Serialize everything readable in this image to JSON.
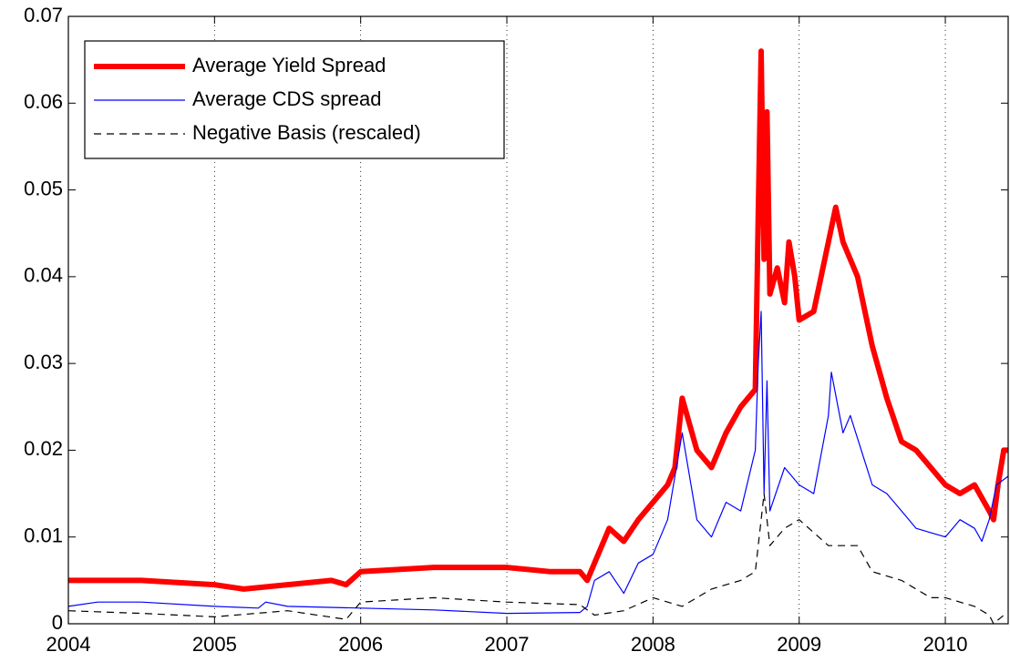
{
  "chart_data": {
    "type": "line",
    "xlim": [
      2004,
      2010.43
    ],
    "ylim": [
      0,
      0.07
    ],
    "xticks": [
      2004,
      2005,
      2006,
      2007,
      2008,
      2009,
      2010
    ],
    "yticks": [
      0,
      0.01,
      0.02,
      0.03,
      0.04,
      0.05,
      0.06,
      0.07
    ],
    "grid": "x",
    "legend": "upper left",
    "series": [
      {
        "name": "Average Yield Spread",
        "color": "#ff0000",
        "width": 6,
        "dash": "solid",
        "x": [
          2004,
          2004.5,
          2005,
          2005.2,
          2005.5,
          2005.8,
          2005.9,
          2006,
          2006.5,
          2007,
          2007.3,
          2007.5,
          2007.55,
          2007.6,
          2007.7,
          2007.8,
          2007.9,
          2008,
          2008.1,
          2008.15,
          2008.2,
          2008.3,
          2008.4,
          2008.5,
          2008.6,
          2008.7,
          2008.72,
          2008.74,
          2008.76,
          2008.78,
          2008.8,
          2008.85,
          2008.9,
          2008.93,
          2008.97,
          2009,
          2009.1,
          2009.2,
          2009.25,
          2009.3,
          2009.4,
          2009.5,
          2009.6,
          2009.7,
          2009.8,
          2010,
          2010.1,
          2010.2,
          2010.3,
          2010.33,
          2010.36,
          2010.4,
          2010.43
        ],
        "values": [
          0.005,
          0.005,
          0.0045,
          0.004,
          0.0045,
          0.005,
          0.0045,
          0.006,
          0.0065,
          0.0065,
          0.006,
          0.006,
          0.005,
          0.007,
          0.011,
          0.0095,
          0.012,
          0.014,
          0.016,
          0.018,
          0.026,
          0.02,
          0.018,
          0.022,
          0.025,
          0.027,
          0.047,
          0.066,
          0.042,
          0.059,
          0.038,
          0.041,
          0.037,
          0.044,
          0.04,
          0.035,
          0.036,
          0.044,
          0.048,
          0.044,
          0.04,
          0.032,
          0.026,
          0.021,
          0.02,
          0.016,
          0.015,
          0.016,
          0.013,
          0.012,
          0.016,
          0.02,
          0.02
        ]
      },
      {
        "name": "Average CDS spread",
        "color": "#0000ff",
        "width": 1.2,
        "dash": "solid",
        "x": [
          2004,
          2004.2,
          2004.5,
          2005,
          2005.3,
          2005.35,
          2005.5,
          2006,
          2006.5,
          2007,
          2007.5,
          2007.55,
          2007.6,
          2007.7,
          2007.8,
          2007.9,
          2008,
          2008.1,
          2008.2,
          2008.3,
          2008.4,
          2008.5,
          2008.6,
          2008.7,
          2008.72,
          2008.74,
          2008.76,
          2008.78,
          2008.8,
          2008.9,
          2009,
          2009.1,
          2009.2,
          2009.22,
          2009.3,
          2009.35,
          2009.5,
          2009.6,
          2009.7,
          2009.8,
          2010,
          2010.1,
          2010.2,
          2010.25,
          2010.3,
          2010.35,
          2010.43
        ],
        "values": [
          0.002,
          0.0025,
          0.0025,
          0.002,
          0.0018,
          0.0025,
          0.002,
          0.0018,
          0.0016,
          0.0012,
          0.0013,
          0.002,
          0.005,
          0.006,
          0.0035,
          0.007,
          0.008,
          0.012,
          0.022,
          0.012,
          0.01,
          0.014,
          0.013,
          0.02,
          0.03,
          0.036,
          0.015,
          0.028,
          0.013,
          0.018,
          0.016,
          0.015,
          0.024,
          0.029,
          0.022,
          0.024,
          0.016,
          0.015,
          0.013,
          0.011,
          0.01,
          0.012,
          0.011,
          0.0095,
          0.012,
          0.016,
          0.017
        ]
      },
      {
        "name": "Negative Basis (rescaled)",
        "color": "#000000",
        "width": 1.2,
        "dash": "dashed",
        "x": [
          2004,
          2004.5,
          2005,
          2005.5,
          2005.9,
          2006,
          2006.5,
          2007,
          2007.5,
          2007.6,
          2007.8,
          2008,
          2008.2,
          2008.4,
          2008.6,
          2008.7,
          2008.76,
          2008.8,
          2008.9,
          2009,
          2009.2,
          2009.4,
          2009.5,
          2009.7,
          2009.9,
          2010,
          2010.2,
          2010.3,
          2010.33,
          2010.4,
          2010.43
        ],
        "values": [
          0.0015,
          0.0012,
          0.0008,
          0.0015,
          0.0005,
          0.0025,
          0.003,
          0.0025,
          0.0022,
          0.001,
          0.0015,
          0.003,
          0.002,
          0.004,
          0.005,
          0.006,
          0.015,
          0.009,
          0.011,
          0.012,
          0.009,
          0.009,
          0.006,
          0.005,
          0.003,
          0.003,
          0.002,
          0.001,
          0.0,
          0.001,
          0.001
        ]
      }
    ]
  }
}
